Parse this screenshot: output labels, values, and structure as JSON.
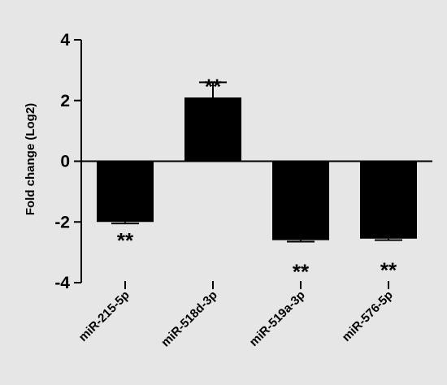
{
  "chart_data": {
    "type": "bar",
    "title": "",
    "xlabel": "",
    "ylabel": "Fold change (Log2)",
    "ylim": [
      -4,
      4
    ],
    "yticks": [
      4,
      2,
      0,
      -2,
      -4
    ],
    "grid": false,
    "categories": [
      "miR-215-5p",
      "miR-518d-3p",
      "miR-519a-3p",
      "miR-576-5p"
    ],
    "values": [
      -2.0,
      2.1,
      -2.6,
      -2.55
    ],
    "errors": [
      0.05,
      0.5,
      0.05,
      0.05
    ],
    "significance": [
      "**",
      "**",
      "**",
      "**"
    ],
    "colors": {
      "bar": "#000000",
      "background": "#e6e6e6",
      "axis": "#000000"
    }
  }
}
